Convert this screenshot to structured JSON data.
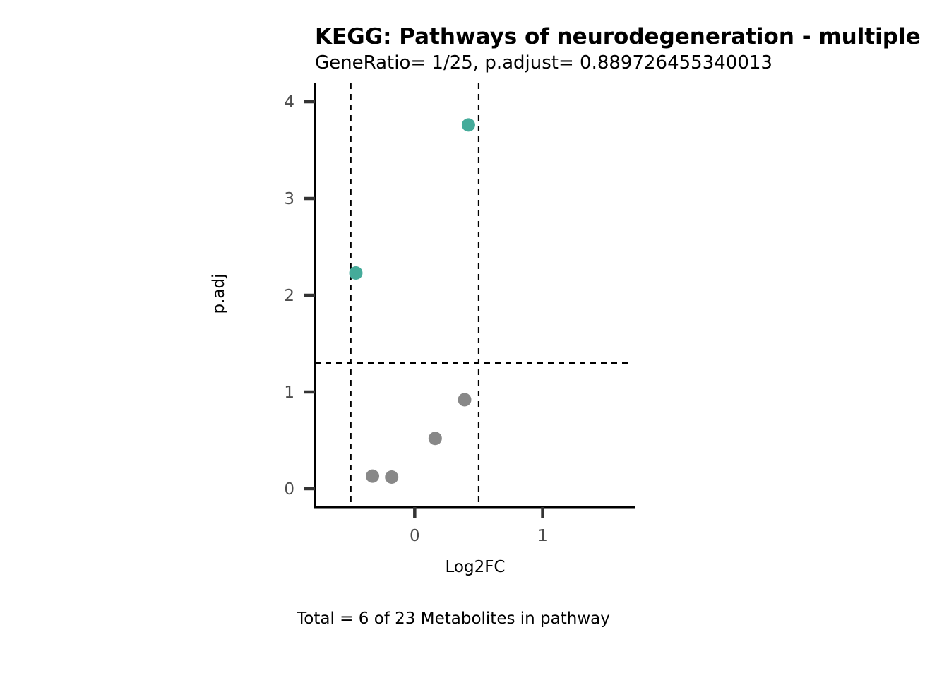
{
  "chart_data": {
    "type": "scatter",
    "title": "KEGG: Pathways of neurodegeneration - multiple",
    "subtitle": "GeneRatio= 1/25, p.adjust= 0.889726455340013",
    "xlabel": "Log2FC",
    "ylabel": "p.adj",
    "caption": "Total = 6 of 23 Metabolites in pathway",
    "xlim": [
      -0.78,
      1.72
    ],
    "ylim": [
      -0.19,
      4.19
    ],
    "x_ticks": [
      0,
      1
    ],
    "y_ticks": [
      0,
      1,
      2,
      3,
      4
    ],
    "grid": false,
    "thresholds": {
      "log2fc": [
        -0.5,
        0.5
      ],
      "p_adj": 1.3
    },
    "colors": {
      "significant": "#45AB9A",
      "not_significant": "#888888",
      "axis": "#000000",
      "tick": "#333333"
    },
    "points": [
      {
        "x": 0.42,
        "y": 3.76,
        "significant": true
      },
      {
        "x": -0.46,
        "y": 2.23,
        "significant": true
      },
      {
        "x": 0.39,
        "y": 0.92,
        "significant": false
      },
      {
        "x": 0.16,
        "y": 0.52,
        "significant": false
      },
      {
        "x": -0.33,
        "y": 0.13,
        "significant": false
      },
      {
        "x": -0.18,
        "y": 0.12,
        "significant": false
      }
    ]
  }
}
